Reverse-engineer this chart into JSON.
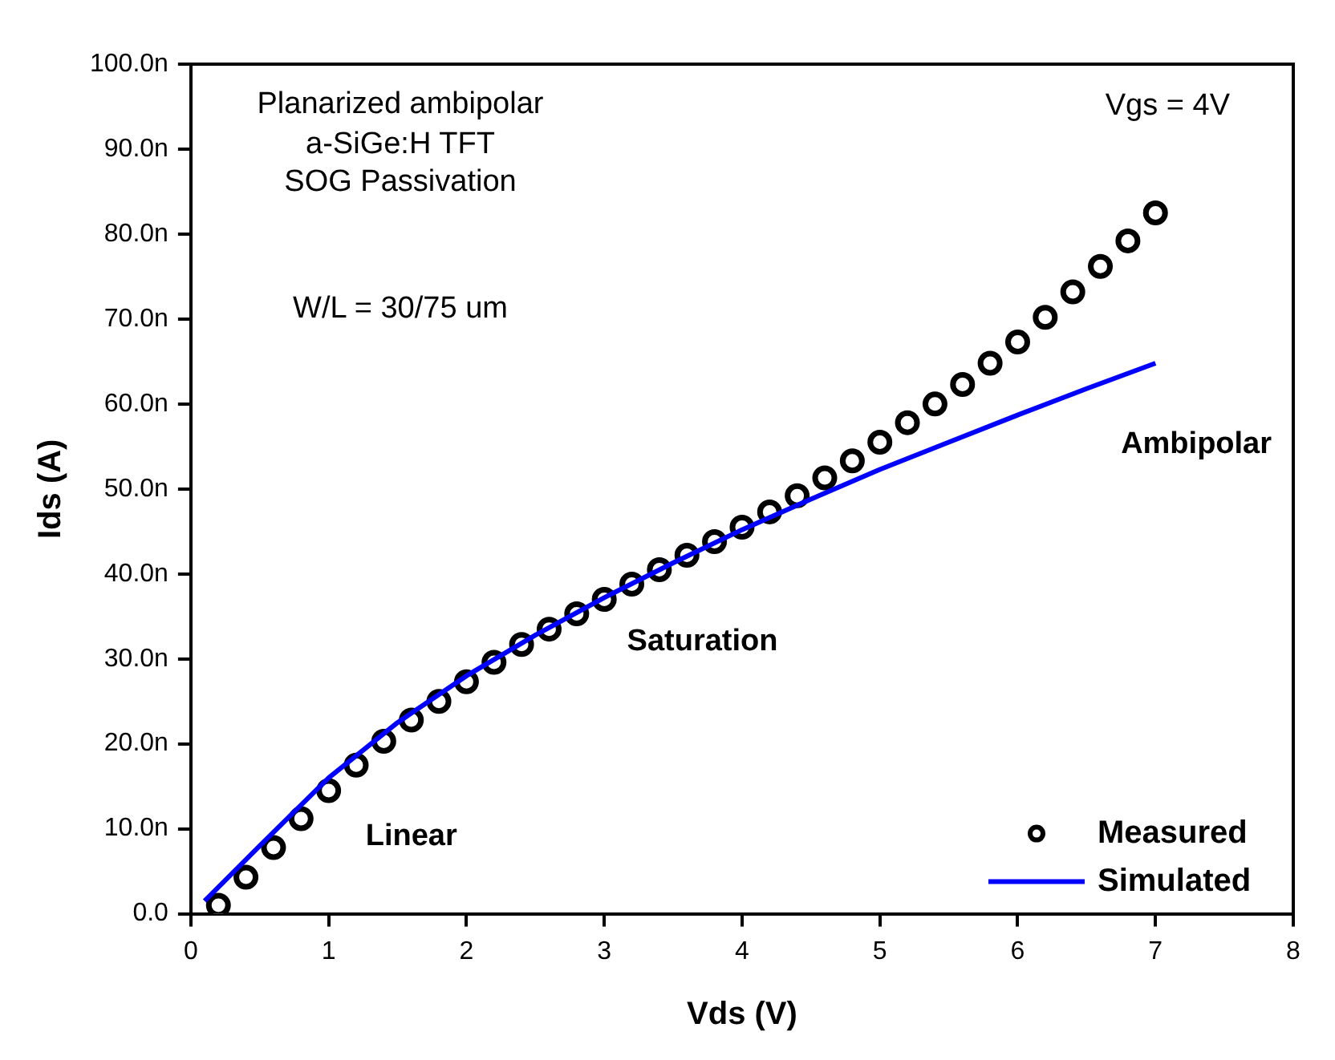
{
  "chart_data": {
    "type": "scatter",
    "xlabel": "Vds (V)",
    "ylabel": "Ids (A)",
    "xlim": [
      0,
      8
    ],
    "xticks": [
      0,
      1,
      2,
      3,
      4,
      5,
      6,
      7,
      8
    ],
    "ylim": [
      0,
      100
    ],
    "yticks": [
      {
        "value": 0,
        "label": "0.0"
      },
      {
        "value": 10,
        "label": "10.0n"
      },
      {
        "value": 20,
        "label": "20.0n"
      },
      {
        "value": 30,
        "label": "30.0n"
      },
      {
        "value": 40,
        "label": "40.0n"
      },
      {
        "value": 50,
        "label": "50.0n"
      },
      {
        "value": 60,
        "label": "60.0n"
      },
      {
        "value": 70,
        "label": "70.0n"
      },
      {
        "value": 80,
        "label": "80.0n"
      },
      {
        "value": 90,
        "label": "90.0n"
      },
      {
        "value": 100,
        "label": "100.0n"
      }
    ],
    "grid": false,
    "legend": "bottom right",
    "series": [
      {
        "name": "Measured",
        "marker": "circle",
        "color": "#000000",
        "x": [
          0.2,
          0.4,
          0.6,
          0.8,
          1.0,
          1.2,
          1.4,
          1.6,
          1.8,
          2.0,
          2.2,
          2.4,
          2.6,
          2.8,
          3.0,
          3.2,
          3.4,
          3.6,
          3.8,
          4.0,
          4.2,
          4.4,
          4.6,
          4.8,
          5.0,
          5.2,
          5.4,
          5.6,
          5.8,
          6.0,
          6.2,
          6.4,
          6.6,
          6.8,
          7.0
        ],
        "values": [
          1.0,
          4.3,
          7.8,
          11.2,
          14.5,
          17.5,
          20.3,
          22.8,
          25,
          27.3,
          29.6,
          31.7,
          33.5,
          35.3,
          37,
          38.8,
          40.5,
          42.2,
          43.8,
          45.5,
          47.3,
          49.2,
          51.3,
          53.3,
          55.5,
          57.8,
          60,
          62.3,
          64.8,
          67.3,
          70.2,
          73.2,
          76.2,
          79.2,
          82.5
        ]
      },
      {
        "name": "Simulated",
        "type": "line",
        "marker": "none",
        "line_style": "solid",
        "color": "#0000ff",
        "x": [
          0.1,
          0.5,
          1.0,
          1.5,
          2.0,
          2.5,
          3.0,
          3.5,
          4.0,
          4.5,
          5.0,
          5.5,
          6.0,
          6.5,
          7.0
        ],
        "values": [
          1.5,
          8,
          16,
          22.5,
          28,
          32.8,
          37.2,
          41.3,
          45.2,
          48.8,
          52.3,
          55.5,
          58.7,
          61.8,
          64.8
        ]
      }
    ],
    "annotations": [
      "Planarized ambipolar",
      "a-SiGe:H TFT",
      "SOG Passivation",
      "W/L = 30/75 um",
      "Vgs = 4V",
      "Linear",
      "Saturation",
      "Ambipolar"
    ]
  }
}
